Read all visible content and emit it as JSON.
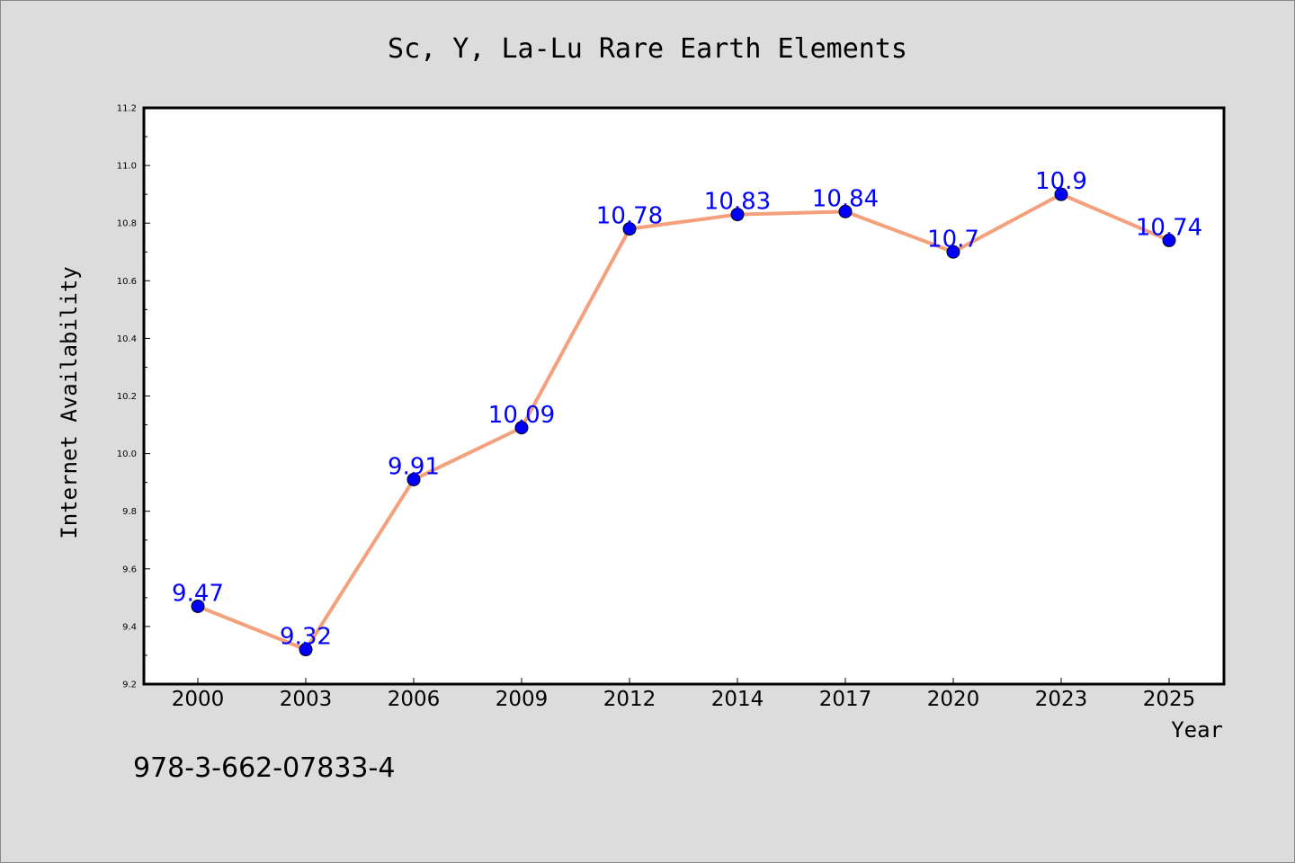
{
  "chart_data": {
    "type": "line",
    "title": "Sc, Y, La-Lu Rare Earth Elements",
    "xlabel": "Year",
    "ylabel": "Internet Availability",
    "categories": [
      "2000",
      "2003",
      "2006",
      "2009",
      "2012",
      "2014",
      "2017",
      "2020",
      "2023",
      "2025"
    ],
    "series": [
      {
        "values": [
          9.47,
          9.32,
          9.91,
          10.09,
          10.78,
          10.83,
          10.84,
          10.7,
          10.9,
          10.74
        ]
      }
    ],
    "data_labels": [
      "9.47",
      "9.32",
      "9.91",
      "10.09",
      "10.78",
      "10.83",
      "10.84",
      "10.7",
      "10.9",
      "10.74"
    ],
    "ylim": [
      9.2,
      11.2
    ],
    "yticks": [
      "9.2",
      "9.4",
      "9.6",
      "9.8",
      "10.0",
      "10.2",
      "10.4",
      "10.6",
      "10.8",
      "11.0",
      "11.2"
    ],
    "grid": false,
    "line_color": "#f4a07c",
    "marker_color": "#0000ff",
    "label_color": "#0000ff",
    "background": "#dcdcdc"
  },
  "annotation": "978-3-662-07833-4"
}
